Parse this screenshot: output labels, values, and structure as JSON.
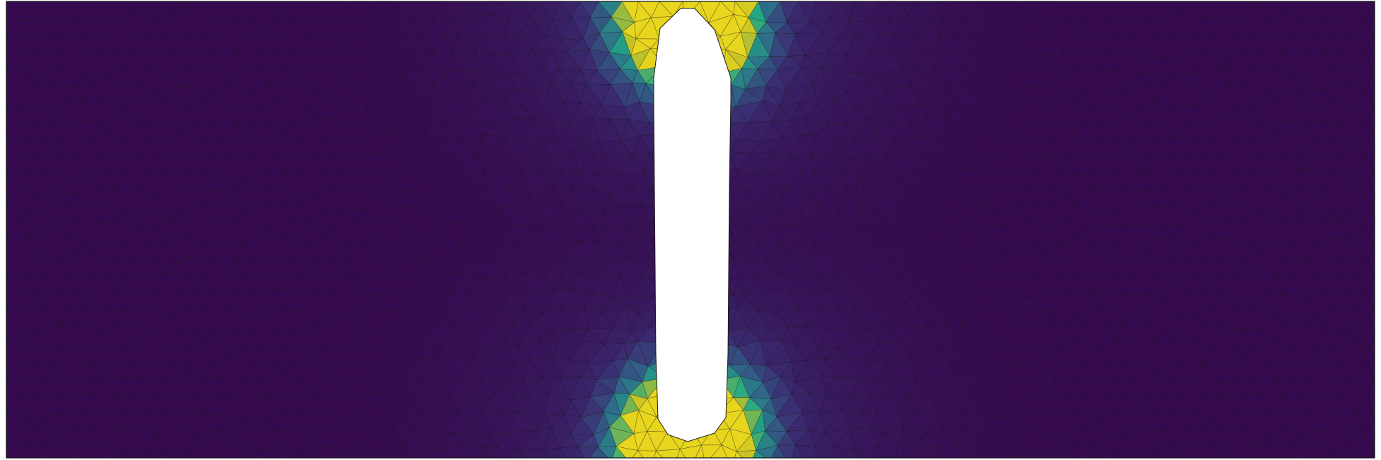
{
  "figure": {
    "kind": "finite-element-mesh-field",
    "mesh": "triangular",
    "colormap": "viridis",
    "colors": {
      "low": "#360a4f",
      "low_mid": "#3b2d72",
      "mid": "#2f6a8a",
      "mid_high": "#22a884",
      "high": "#c8c424",
      "peak": "#e7d51e",
      "edge": "#1a1a1a",
      "hole": "#ffffff"
    },
    "features": [
      "rectangular-domain",
      "central-vertical-slot-cutout",
      "stress-concentration-at-slot-ends"
    ]
  }
}
